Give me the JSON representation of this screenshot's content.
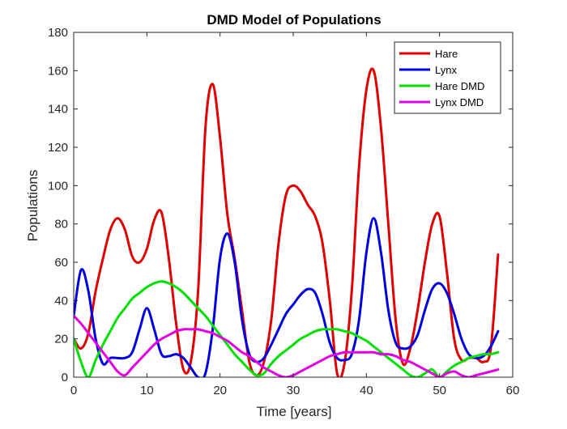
{
  "chart_data": {
    "type": "line",
    "title": "DMD Model of Populations",
    "xlabel": "Time [years]",
    "ylabel": "Populations",
    "xlim": [
      0,
      60
    ],
    "ylim": [
      0,
      180
    ],
    "x_ticks": [
      0,
      10,
      20,
      30,
      40,
      50,
      60
    ],
    "y_ticks": [
      0,
      20,
      40,
      60,
      80,
      100,
      120,
      140,
      160,
      180
    ],
    "grid": false,
    "legend_location": "top-right",
    "series": [
      {
        "name": "Hare",
        "color": "#e00000",
        "x": [
          0,
          1,
          2,
          3,
          4,
          5,
          6,
          7,
          8,
          9,
          10,
          11,
          12,
          13,
          14,
          15,
          16,
          17,
          18,
          19,
          20,
          21,
          22,
          23,
          24,
          25,
          26,
          27,
          28,
          29,
          30,
          31,
          32,
          33,
          34,
          35,
          36,
          37,
          38,
          39,
          40,
          41,
          42,
          43,
          44,
          45,
          46,
          47,
          48,
          49,
          50,
          51,
          52,
          53,
          54,
          55,
          56,
          57,
          58
        ],
        "values": [
          20,
          15,
          23,
          45,
          62,
          77,
          83,
          77,
          63,
          60,
          67,
          82,
          86,
          62,
          28,
          4,
          8,
          45,
          130,
          153,
          125,
          85,
          62,
          35,
          8,
          1,
          8,
          30,
          70,
          95,
          100,
          97,
          90,
          84,
          70,
          40,
          2,
          7,
          45,
          110,
          150,
          160,
          130,
          80,
          30,
          7,
          15,
          35,
          60,
          80,
          84,
          55,
          20,
          9,
          10,
          10,
          8,
          15,
          64
        ]
      },
      {
        "name": "Lynx",
        "color": "#0000e0",
        "x": [
          0,
          1,
          2,
          3,
          4,
          5,
          6,
          7,
          8,
          9,
          10,
          11,
          12,
          13,
          14,
          15,
          16,
          17,
          18,
          19,
          20,
          21,
          22,
          23,
          24,
          25,
          26,
          27,
          28,
          29,
          30,
          31,
          32,
          33,
          34,
          35,
          36,
          37,
          38,
          39,
          40,
          41,
          42,
          43,
          44,
          45,
          46,
          47,
          48,
          49,
          50,
          51,
          52,
          53,
          54,
          55,
          56,
          57,
          58
        ],
        "values": [
          32,
          56,
          45,
          20,
          7,
          10,
          10,
          10,
          13,
          25,
          36,
          25,
          12,
          11,
          12,
          10,
          5,
          0,
          2,
          25,
          62,
          75,
          60,
          30,
          12,
          8,
          10,
          17,
          25,
          33,
          38,
          43,
          46,
          44,
          33,
          18,
          10,
          9,
          12,
          30,
          65,
          83,
          65,
          35,
          18,
          15,
          16,
          22,
          35,
          46,
          49,
          44,
          33,
          20,
          12,
          10,
          11,
          16,
          24
        ]
      },
      {
        "name": "Hare DMD",
        "color": "#00e000",
        "x": [
          0,
          1,
          2,
          3,
          4,
          5,
          6,
          7,
          8,
          9,
          10,
          11,
          12,
          13,
          14,
          15,
          16,
          17,
          18,
          19,
          20,
          21,
          22,
          23,
          24,
          25,
          26,
          27,
          28,
          29,
          30,
          31,
          32,
          33,
          34,
          35,
          36,
          37,
          38,
          39,
          40,
          41,
          42,
          43,
          44,
          45,
          46,
          47,
          48,
          49,
          50,
          51,
          52,
          53,
          54,
          55,
          56,
          57,
          58
        ],
        "values": [
          20,
          8,
          0,
          9,
          17,
          24,
          31,
          36,
          41,
          44,
          47,
          49,
          50,
          49,
          47,
          44,
          40,
          36,
          32,
          27,
          22,
          17,
          12,
          8,
          4,
          1,
          2,
          7,
          11,
          14,
          17,
          20,
          22,
          24,
          25,
          25,
          25,
          24,
          23,
          21,
          19,
          16,
          13,
          10,
          7,
          4,
          1,
          0,
          2,
          4,
          0,
          3,
          6,
          8,
          10,
          11,
          12,
          12,
          13
        ]
      },
      {
        "name": "Lynx DMD",
        "color": "#e000e0",
        "x": [
          0,
          1,
          2,
          3,
          4,
          5,
          6,
          7,
          8,
          9,
          10,
          11,
          12,
          13,
          14,
          15,
          16,
          17,
          18,
          19,
          20,
          21,
          22,
          23,
          24,
          25,
          26,
          27,
          28,
          29,
          30,
          31,
          32,
          33,
          34,
          35,
          36,
          37,
          38,
          39,
          40,
          41,
          42,
          43,
          44,
          45,
          46,
          47,
          48,
          49,
          50,
          51,
          52,
          53,
          54,
          55,
          56,
          57,
          58
        ],
        "values": [
          32,
          28,
          23,
          18,
          13,
          8,
          3,
          1,
          5,
          9,
          13,
          17,
          20,
          22,
          24,
          25,
          25,
          25,
          24,
          23,
          21,
          19,
          16,
          13,
          11,
          8,
          5,
          3,
          1,
          0,
          1,
          3,
          5,
          7,
          9,
          11,
          12,
          13,
          13,
          13,
          13,
          13,
          12,
          12,
          11,
          9,
          8,
          6,
          4,
          2,
          0,
          2,
          3,
          1,
          0,
          1,
          2,
          3,
          4
        ]
      }
    ]
  }
}
